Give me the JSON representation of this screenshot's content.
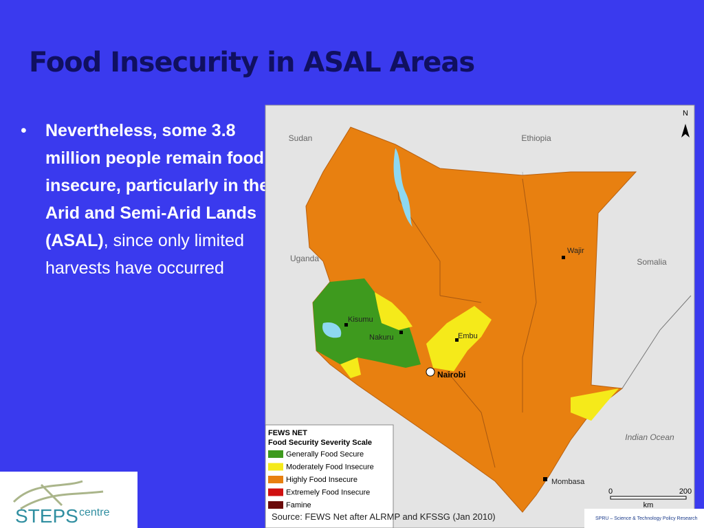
{
  "title": "Food Insecurity in ASAL Areas",
  "bullet": {
    "bold": "Nevertheless, some 3.8 million people remain food insecure, particularly in the Arid and Semi-Arid Lands (ASAL)",
    "punct": ",",
    "rest": "since only limited harvests have occurred"
  },
  "map": {
    "countries": [
      "Sudan",
      "Ethiopia",
      "Uganda",
      "Somalia"
    ],
    "ocean": "Indian Ocean",
    "cities": [
      "Wajir",
      "Kisumu",
      "Nakuru",
      "Embu",
      "Nairobi",
      "Mombasa"
    ],
    "north": "N",
    "scale": {
      "unit": "km",
      "start": "0",
      "end": "200"
    },
    "legend": {
      "title": "FEWS NET",
      "subtitle": "Food Security Severity Scale",
      "items": [
        {
          "label": "Generally Food Secure",
          "color": "#3e9a1e"
        },
        {
          "label": "Moderately Food Insecure",
          "color": "#f5ea1a"
        },
        {
          "label": "Highly Food Insecure",
          "color": "#e88010"
        },
        {
          "label": "Extremely Food Insecure",
          "color": "#d01010"
        },
        {
          "label": "Famine",
          "color": "#6a0a0a"
        }
      ]
    }
  },
  "source": "Source: FEWS Net after ALRMP and KFSSG (Jan 2010)",
  "logos": {
    "steps": "STEPS",
    "steps_sub": "centre",
    "spru": "SPRU – Science & Technology Policy Research"
  }
}
